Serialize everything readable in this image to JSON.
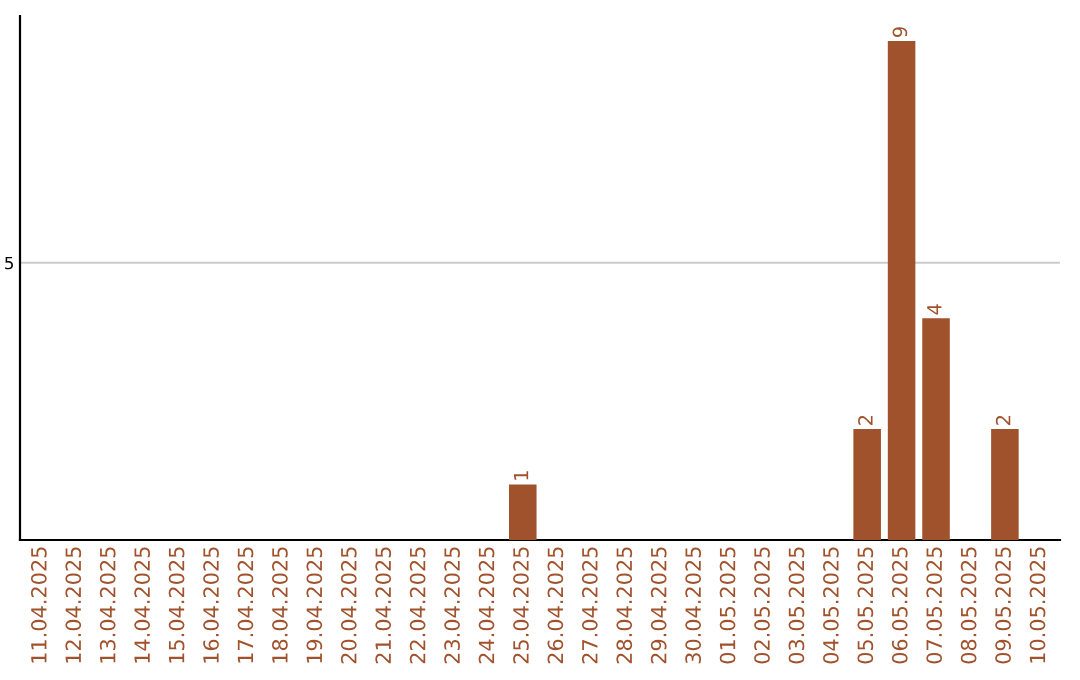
{
  "chart_data": {
    "type": "bar",
    "categories": [
      "11.04.2025",
      "12.04.2025",
      "13.04.2025",
      "14.04.2025",
      "15.04.2025",
      "16.04.2025",
      "17.04.2025",
      "18.04.2025",
      "19.04.2025",
      "20.04.2025",
      "21.04.2025",
      "22.04.2025",
      "23.04.2025",
      "24.04.2025",
      "25.04.2025",
      "26.04.2025",
      "27.04.2025",
      "28.04.2025",
      "29.04.2025",
      "30.04.2025",
      "01.05.2025",
      "02.05.2025",
      "03.05.2025",
      "04.05.2025",
      "05.05.2025",
      "06.05.2025",
      "07.05.2025",
      "08.05.2025",
      "09.05.2025",
      "10.05.2025"
    ],
    "series": [
      {
        "color": "#a0522d",
        "values": [
          null,
          null,
          null,
          null,
          null,
          null,
          null,
          null,
          null,
          null,
          null,
          null,
          null,
          null,
          1,
          null,
          null,
          null,
          null,
          null,
          null,
          null,
          null,
          null,
          2,
          9,
          4,
          null,
          2,
          null
        ],
        "value_labels": [
          null,
          null,
          null,
          null,
          null,
          null,
          null,
          null,
          null,
          null,
          null,
          null,
          null,
          null,
          "1",
          null,
          null,
          null,
          null,
          null,
          null,
          null,
          null,
          null,
          "2",
          "9",
          "4",
          null,
          "2",
          null
        ]
      }
    ],
    "ylim": [
      0,
      9.45
    ],
    "yticks": [
      5
    ],
    "grid": "y"
  }
}
